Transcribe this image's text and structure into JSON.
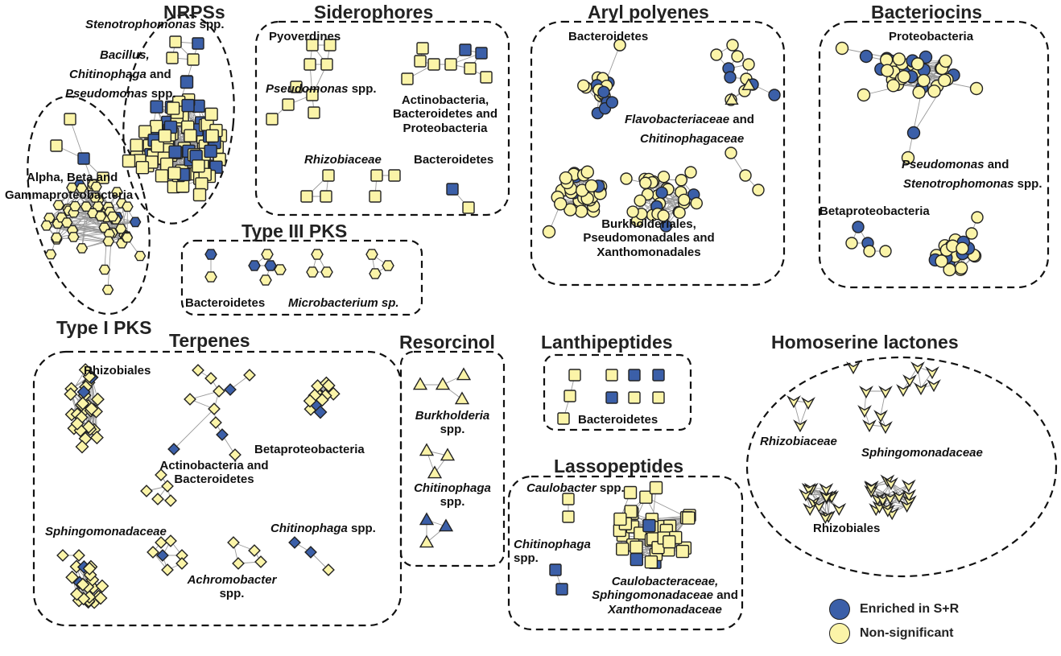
{
  "colors": {
    "enriched": "#3b5fa8",
    "nonsig": "#fbf4a8",
    "stroke": "#222222",
    "edge": "#9a9a9a"
  },
  "clusters": {
    "nrps": {
      "title": "NRPSs",
      "l1": "Stenotrophomonas",
      "l1b": "spp.",
      "l2": "Bacillus,",
      "l3": "Chitinophaga",
      "l3b": "and",
      "l4": "Pseudomonas",
      "l4b": "spp."
    },
    "t1pks": {
      "title": "Type I PKS",
      "l1": "Alpha, Beta and",
      "l2": "Gammaproteobacteria"
    },
    "siderophores": {
      "title": "Siderophores",
      "pyo": "Pyoverdines",
      "pseu": "Pseudomonas",
      "pseu_b": "spp.",
      "act1": "Actinobacteria,",
      "act2": "Bacteroidetes and",
      "act3": "Proteobacteria",
      "rhizo": "Rhizobiaceae",
      "bact": "Bacteroidetes"
    },
    "t3pks": {
      "title": "Type III PKS",
      "bact": "Bacteroidetes",
      "micro": "Microbacterium sp."
    },
    "aryl": {
      "title": "Aryl polyenes",
      "bact": "Bacteroidetes",
      "flavo": "Flavobacteriaceae",
      "flavo_b": "and",
      "chit": "Chitinophagaceae",
      "b1": "Burkholderiales,",
      "b2": "Pseudomonadales and",
      "b3": "Xanthomonadales"
    },
    "bacteriocins": {
      "title": "Bacteriocins",
      "proteo": "Proteobacteria",
      "p1": "Pseudomonas",
      "p1b": "and",
      "p2": "Stenotrophomonas",
      "p2b": "spp.",
      "beta": "Betaproteobacteria"
    },
    "terpenes": {
      "title": "Terpenes",
      "rhizob": "Rhizobiales",
      "beta": "Betaproteobacteria",
      "act1": "Actinobacteria and",
      "act2": "Bacteroidetes",
      "sphingo": "Sphingomonadaceae",
      "chit": "Chitinophaga",
      "chit_b": "spp.",
      "achro": "Achromobacter",
      "achro_b": "spp."
    },
    "resorcinol": {
      "title": "Resorcinol",
      "burk": "Burkholderia",
      "burk_b": "spp.",
      "chit": "Chitinophaga",
      "chit_b": "spp."
    },
    "lanthi": {
      "title": "Lanthipeptides",
      "bact": "Bacteroidetes"
    },
    "lasso": {
      "title": "Lassopeptides",
      "caulo": "Caulobacter",
      "caulo_b": "spp.",
      "chit": "Chitinophaga",
      "chit_b": "spp.",
      "c1": "Caulobacteraceae,",
      "c2": "Sphingomonadaceae",
      "c2b": "and",
      "c3": "Xanthomonadaceae"
    },
    "homoserine": {
      "title": "Homoserine lactones",
      "rhizo": "Rhizobiaceae",
      "sphingo": "Sphingomonadaceae",
      "rhizob": "Rhizobiales"
    }
  },
  "legend": {
    "enriched": "Enriched in S+R",
    "nonsig": "Non-significant"
  }
}
